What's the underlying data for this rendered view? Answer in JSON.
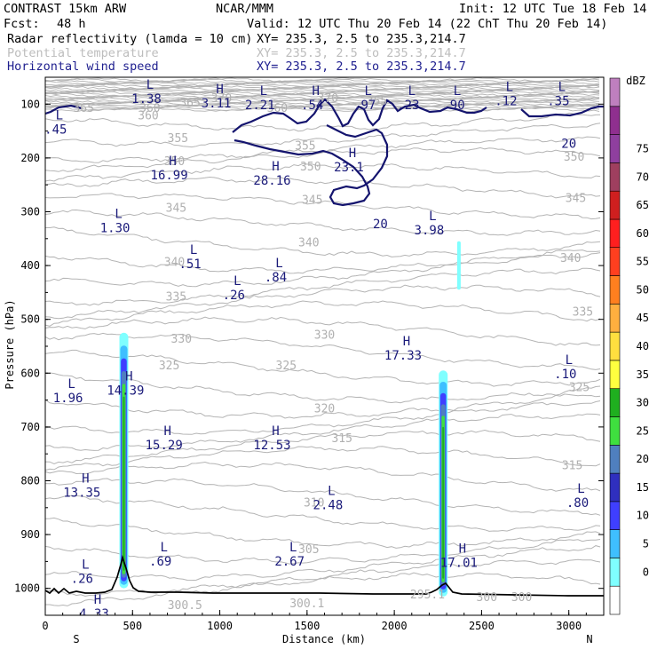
{
  "header": {
    "model": "CONTRAST 15km ARW",
    "org": "NCAR/MMM",
    "init": "Init: 12 UTC Tue 18 Feb 14",
    "fcst_label": "Fcst:",
    "fcst_value": "48 h",
    "valid": "Valid: 12 UTC Thu 20 Feb 14 (22 ChT Thu 20 Feb 14)",
    "field1": "Radar reflectivity (lamda = 10 cm)",
    "field2": "Potential temperature",
    "field3": "Horizontal wind speed",
    "xy": "XY= 235.3,  2.5 to 235.3,214.7"
  },
  "colors": {
    "reflectivity": [
      "#ffffff",
      "#7fffff",
      "#3fbfff",
      "#3f3fff",
      "#2f2fbf",
      "#4f7fbf",
      "#3fdf3f",
      "#1faf1f",
      "#ffff3f",
      "#ffdf3f",
      "#ffaf3f",
      "#ff7f1f",
      "#ff3f1f",
      "#ff1f1f",
      "#cf1f1f",
      "#9f3f5f",
      "#8f3f9f",
      "#8f2f8f",
      "#bf7fbf"
    ],
    "theta": "#b4b4b4",
    "wind": "#14146e",
    "terrain": "#000000"
  },
  "chart_data": {
    "type": "contour cross-section",
    "ylabel": "Pressure (hPa)",
    "xlabel": "Distance (km)",
    "xlim": [
      0,
      3200
    ],
    "ylim_hpa": [
      1050,
      50
    ],
    "x_ticks": [
      "0",
      "500",
      "1000",
      "1500",
      "2000",
      "2500",
      "3000"
    ],
    "y_ticks": [
      "100",
      "200",
      "300",
      "400",
      "500",
      "600",
      "700",
      "800",
      "900",
      "1000"
    ],
    "x_end_labels": {
      "left": "S",
      "right": "N"
    },
    "colorbar": {
      "unit": "dBZ",
      "ticks": [
        "0",
        "5",
        "10",
        "15",
        "20",
        "25",
        "30",
        "35",
        "40",
        "45",
        "50",
        "55",
        "60",
        "65",
        "70",
        "75"
      ]
    },
    "theta_labels": [
      {
        "text": "365",
        "x": 220,
        "p": 106
      },
      {
        "text": "360",
        "x": 600,
        "p": 106
      },
      {
        "text": "365",
        "x": 830,
        "p": 96
      },
      {
        "text": "370",
        "x": 1010,
        "p": 88
      },
      {
        "text": "360",
        "x": 1330,
        "p": 106
      },
      {
        "text": "370",
        "x": 1620,
        "p": 88
      },
      {
        "text": "355",
        "x": 1900,
        "p": 93
      },
      {
        "text": "360",
        "x": 590,
        "p": 120
      },
      {
        "text": "355",
        "x": 760,
        "p": 162
      },
      {
        "text": "355",
        "x": 1490,
        "p": 176
      },
      {
        "text": "350",
        "x": 740,
        "p": 205
      },
      {
        "text": "350",
        "x": 1520,
        "p": 215
      },
      {
        "text": "350",
        "x": 3030,
        "p": 197
      },
      {
        "text": "345",
        "x": 1530,
        "p": 277
      },
      {
        "text": "345",
        "x": 750,
        "p": 292
      },
      {
        "text": "345",
        "x": 3040,
        "p": 274
      },
      {
        "text": "340",
        "x": 1510,
        "p": 356
      },
      {
        "text": "340",
        "x": 740,
        "p": 392
      },
      {
        "text": "340",
        "x": 3010,
        "p": 385
      },
      {
        "text": "335",
        "x": 750,
        "p": 457
      },
      {
        "text": "335",
        "x": 3080,
        "p": 485
      },
      {
        "text": "330",
        "x": 780,
        "p": 535
      },
      {
        "text": "330",
        "x": 1600,
        "p": 528
      },
      {
        "text": "325",
        "x": 710,
        "p": 585
      },
      {
        "text": "325",
        "x": 1380,
        "p": 585
      },
      {
        "text": "325",
        "x": 3060,
        "p": 625
      },
      {
        "text": "320",
        "x": 1600,
        "p": 665
      },
      {
        "text": "315",
        "x": 1700,
        "p": 720
      },
      {
        "text": "315",
        "x": 3020,
        "p": 770
      },
      {
        "text": "310",
        "x": 1540,
        "p": 840
      },
      {
        "text": "305",
        "x": 1510,
        "p": 926
      },
      {
        "text": "300.1",
        "x": 1500,
        "p": 1027
      },
      {
        "text": "300.5",
        "x": 800,
        "p": 1030
      },
      {
        "text": "300",
        "x": 2530,
        "p": 1015
      },
      {
        "text": "300",
        "x": 2730,
        "p": 1015
      },
      {
        "text": "295.1",
        "x": 2190,
        "p": 1010
      }
    ],
    "wind_contour_labels": [
      {
        "text": "20",
        "x": 3000,
        "p": 173
      },
      {
        "text": "20",
        "x": 1920,
        "p": 322
      }
    ],
    "wind_extrema": [
      {
        "kind": "L",
        "value": ".45",
        "x": 60,
        "p": 135
      },
      {
        "kind": "L",
        "value": "1.38",
        "x": 580,
        "p": 78
      },
      {
        "kind": "H",
        "value": "3.11",
        "x": 980,
        "p": 86
      },
      {
        "kind": "L",
        "value": "2.21",
        "x": 1230,
        "p": 90
      },
      {
        "kind": "H",
        "value": ".54",
        "x": 1530,
        "p": 90
      },
      {
        "kind": "L",
        "value": ".97",
        "x": 1830,
        "p": 90
      },
      {
        "kind": "L",
        "value": ".23",
        "x": 2080,
        "p": 90
      },
      {
        "kind": "L",
        "value": ".90",
        "x": 2340,
        "p": 90
      },
      {
        "kind": "L",
        "value": ".12",
        "x": 2640,
        "p": 82
      },
      {
        "kind": "L",
        "value": ".35",
        "x": 2940,
        "p": 82
      },
      {
        "kind": "H",
        "value": "16.99",
        "x": 710,
        "p": 220
      },
      {
        "kind": "H",
        "value": "28.16",
        "x": 1300,
        "p": 230
      },
      {
        "kind": "H",
        "value": "23.1",
        "x": 1740,
        "p": 205
      },
      {
        "kind": "L",
        "value": "1.30",
        "x": 400,
        "p": 318
      },
      {
        "kind": "L",
        "value": "3.98",
        "x": 2200,
        "p": 322
      },
      {
        "kind": "L",
        "value": ".51",
        "x": 830,
        "p": 385
      },
      {
        "kind": "L",
        "value": ".84",
        "x": 1320,
        "p": 410
      },
      {
        "kind": "L",
        "value": ".26",
        "x": 1080,
        "p": 443
      },
      {
        "kind": "H",
        "value": "17.33",
        "x": 2050,
        "p": 555
      },
      {
        "kind": "L",
        "value": ".10",
        "x": 2980,
        "p": 590
      },
      {
        "kind": "H",
        "value": "14.39",
        "x": 460,
        "p": 620
      },
      {
        "kind": "L",
        "value": "1.96",
        "x": 130,
        "p": 634
      },
      {
        "kind": "H",
        "value": "15.29",
        "x": 680,
        "p": 722
      },
      {
        "kind": "H",
        "value": "12.53",
        "x": 1300,
        "p": 722
      },
      {
        "kind": "H",
        "value": "13.35",
        "x": 210,
        "p": 810
      },
      {
        "kind": "L",
        "value": "2.48",
        "x": 1620,
        "p": 833
      },
      {
        "kind": "L",
        "value": ".80",
        "x": 3050,
        "p": 829
      },
      {
        "kind": "L",
        "value": ".69",
        "x": 660,
        "p": 938
      },
      {
        "kind": "L",
        "value": "2.67",
        "x": 1400,
        "p": 938
      },
      {
        "kind": "H",
        "value": "17.01",
        "x": 2370,
        "p": 940
      },
      {
        "kind": "L",
        "value": ".26",
        "x": 210,
        "p": 970
      },
      {
        "kind": "H",
        "value": "4.33",
        "x": 280,
        "p": 1035
      }
    ],
    "reflectivity_columns": [
      {
        "x_center": 450,
        "p_top": 525,
        "p_bottom": 1000,
        "max_dbz": 30
      },
      {
        "x_center": 2280,
        "p_top": 595,
        "p_bottom": 1015,
        "max_dbz": 30
      },
      {
        "x_center": 2370,
        "p_top": 355,
        "p_bottom": 445,
        "max_dbz": 5
      }
    ],
    "terrain_peak": {
      "x": 440,
      "p": 955
    }
  }
}
